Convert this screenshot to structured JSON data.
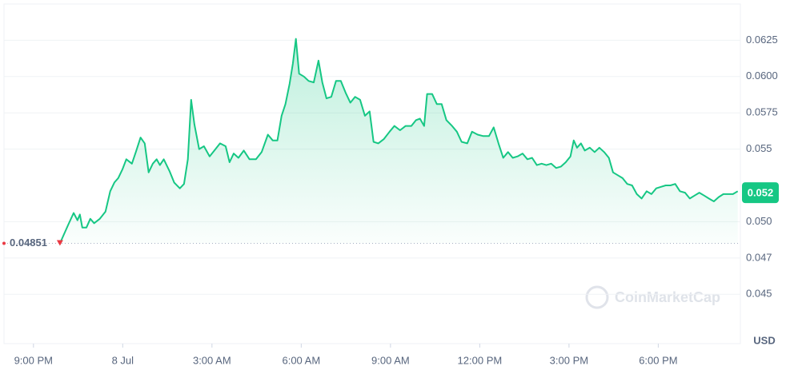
{
  "chart_data": {
    "type": "line",
    "color": "#16c784",
    "x": [
      0.89,
      1.16,
      1.35,
      1.48,
      1.56,
      1.64,
      1.78,
      1.91,
      2.04,
      2.23,
      2.42,
      2.58,
      2.72,
      2.85,
      2.99,
      3.12,
      3.31,
      3.44,
      3.6,
      3.74,
      3.87,
      4.01,
      4.14,
      4.25,
      4.38,
      4.57,
      4.73,
      4.92,
      5.06,
      5.19,
      5.3,
      5.41,
      5.57,
      5.73,
      5.92,
      6.08,
      6.27,
      6.46,
      6.59,
      6.73,
      6.89,
      7.07,
      7.26,
      7.48,
      7.67,
      7.88,
      8.04,
      8.2,
      8.34,
      8.47,
      8.61,
      8.72,
      8.82,
      8.93,
      9.09,
      9.25,
      9.42,
      9.58,
      9.71,
      9.85,
      10.01,
      10.17,
      10.33,
      10.49,
      10.65,
      10.81,
      10.98,
      11.14,
      11.3,
      11.43,
      11.59,
      11.78,
      11.97,
      12.13,
      12.32,
      12.51,
      12.7,
      12.86,
      12.99,
      13.13,
      13.23,
      13.4,
      13.56,
      13.72,
      13.88,
      14.07,
      14.23,
      14.39,
      14.58,
      14.74,
      14.93,
      15.12,
      15.31,
      15.47,
      15.63,
      15.79,
      15.95,
      16.11,
      16.27,
      16.44,
      16.6,
      16.76,
      16.92,
      17.08,
      17.24,
      17.4,
      17.57,
      17.73,
      17.89,
      18.05,
      18.16,
      18.27,
      18.4,
      18.53,
      18.7,
      18.86,
      19.02,
      19.18,
      19.34,
      19.48,
      19.64,
      19.8,
      19.96,
      20.12,
      20.28,
      20.44,
      20.61,
      20.77,
      20.93,
      21.09,
      21.25,
      21.41,
      21.57,
      21.73,
      21.9,
      22.06,
      22.22,
      22.38,
      22.54,
      22.7,
      22.87,
      23.03,
      23.19,
      23.35,
      23.51,
      23.67
    ],
    "values": [
      0.04851,
      0.04975,
      0.0506,
      0.0501,
      0.0505,
      0.0496,
      0.0496,
      0.0502,
      0.0499,
      0.0502,
      0.0507,
      0.0521,
      0.0527,
      0.053,
      0.0536,
      0.0543,
      0.054,
      0.0548,
      0.0558,
      0.0554,
      0.0534,
      0.054,
      0.0543,
      0.0539,
      0.0543,
      0.0535,
      0.0527,
      0.0523,
      0.0526,
      0.0543,
      0.0584,
      0.0567,
      0.055,
      0.0552,
      0.0545,
      0.0549,
      0.0554,
      0.0552,
      0.0541,
      0.0547,
      0.0544,
      0.0549,
      0.0543,
      0.0543,
      0.0548,
      0.056,
      0.0556,
      0.0556,
      0.0573,
      0.0581,
      0.0595,
      0.0609,
      0.0626,
      0.0602,
      0.06,
      0.0597,
      0.0596,
      0.0611,
      0.0596,
      0.0585,
      0.0586,
      0.0597,
      0.0597,
      0.0589,
      0.0582,
      0.0586,
      0.0584,
      0.0573,
      0.0576,
      0.0555,
      0.0554,
      0.0557,
      0.0562,
      0.0566,
      0.0563,
      0.0566,
      0.0566,
      0.057,
      0.0571,
      0.0566,
      0.0588,
      0.0588,
      0.0581,
      0.0581,
      0.057,
      0.0566,
      0.0562,
      0.0555,
      0.0554,
      0.0562,
      0.056,
      0.0559,
      0.0559,
      0.0565,
      0.0554,
      0.0544,
      0.0548,
      0.0544,
      0.0545,
      0.0547,
      0.0543,
      0.0544,
      0.0539,
      0.054,
      0.0539,
      0.054,
      0.0537,
      0.0538,
      0.0541,
      0.0545,
      0.0556,
      0.0551,
      0.0554,
      0.0549,
      0.0551,
      0.0548,
      0.0551,
      0.0548,
      0.0544,
      0.0534,
      0.0532,
      0.053,
      0.0526,
      0.0525,
      0.0519,
      0.0516,
      0.0521,
      0.0519,
      0.0523,
      0.0524,
      0.0525,
      0.0525,
      0.0526,
      0.0521,
      0.052,
      0.0516,
      0.0518,
      0.052,
      0.0518,
      0.0516,
      0.0514,
      0.0517,
      0.0519,
      0.0519,
      0.0519,
      0.0521
    ],
    "xlim": [
      -0.99,
      23.76
    ],
    "xticks": [
      {
        "value": 0,
        "label": "9:00 PM"
      },
      {
        "value": 3,
        "label": "8 Jul"
      },
      {
        "value": 6,
        "label": "3:00 AM"
      },
      {
        "value": 9,
        "label": "6:00 AM"
      },
      {
        "value": 12,
        "label": "9:00 AM"
      },
      {
        "value": 15,
        "label": "12:00 PM"
      },
      {
        "value": 18,
        "label": "3:00 PM"
      },
      {
        "value": 21,
        "label": "6:00 PM"
      }
    ],
    "ylim": [
      0.0416,
      0.065
    ],
    "yticks": [
      0.0625,
      {
        "value": 0.06,
        "label": "0.0600"
      },
      0.0575,
      0.055,
      {
        "value": 0.05,
        "label": "0.050"
      },
      {
        "value": 0.0475,
        "label": "0.047"
      },
      0.045
    ],
    "grid": true,
    "open_price": 0.04851,
    "current_price": 0.052,
    "currency": "USD",
    "watermark": "CoinMarketCap"
  }
}
